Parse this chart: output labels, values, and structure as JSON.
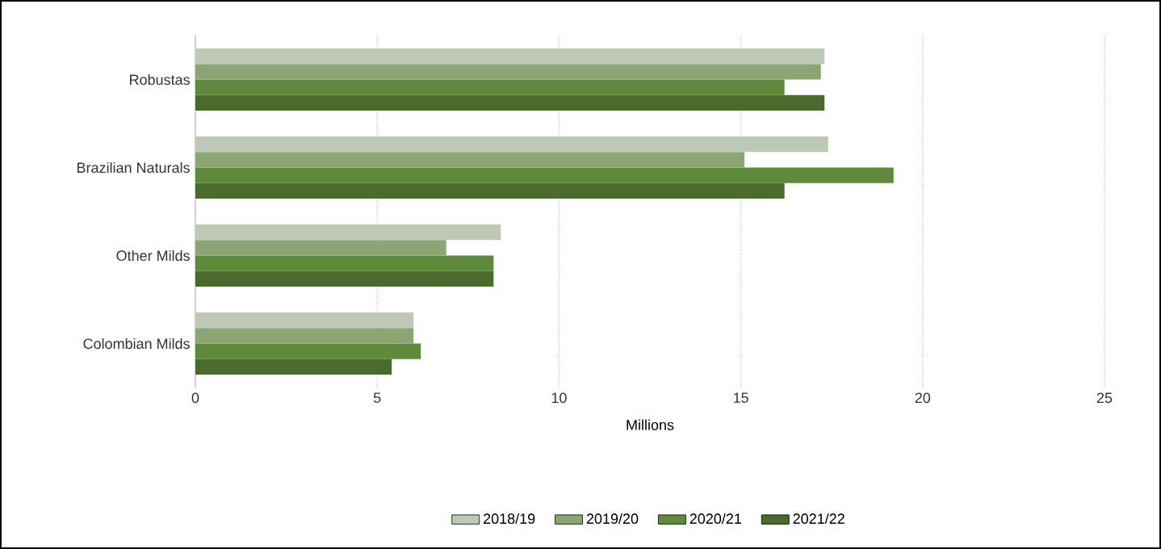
{
  "chart_data": {
    "type": "bar",
    "orientation": "horizontal",
    "xlabel": "Millions",
    "categories": [
      "Robustas",
      "Brazilian Naturals",
      "Other Milds",
      "Colombian Milds"
    ],
    "series": [
      {
        "name": "2018/19",
        "color": "#bdc9b4",
        "values": [
          17.3,
          17.4,
          8.4,
          6.0
        ]
      },
      {
        "name": "2019/20",
        "color": "#8ba673",
        "values": [
          17.2,
          15.1,
          6.9,
          6.0
        ]
      },
      {
        "name": "2020/21",
        "color": "#5f8a3c",
        "values": [
          16.2,
          19.2,
          8.2,
          6.2
        ]
      },
      {
        "name": "2021/22",
        "color": "#4a6b2d",
        "values": [
          17.3,
          16.2,
          8.2,
          5.4
        ]
      }
    ],
    "xlim": [
      0,
      25
    ],
    "xticks": [
      0,
      5,
      10,
      15,
      20,
      25
    ],
    "grid": "x",
    "legend": "bottom"
  }
}
